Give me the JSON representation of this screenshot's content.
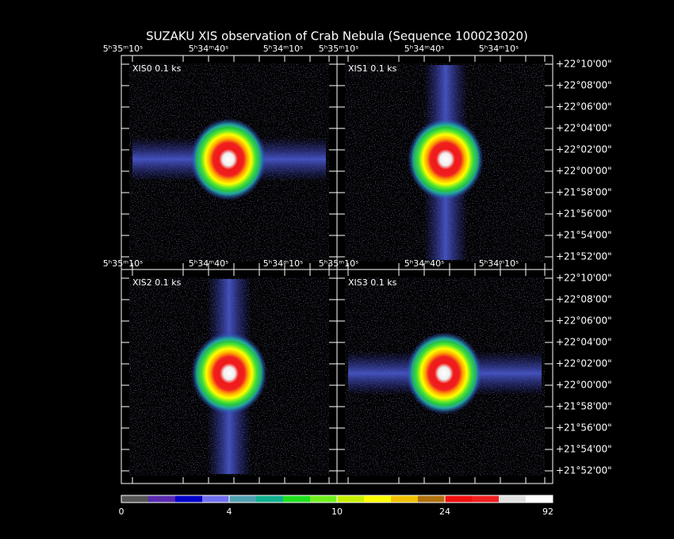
{
  "title": "SUZAKU XIS observation of Crab Nebula  (Sequence 100023020)",
  "panels": [
    {
      "label": "XIS0 0.1 ks",
      "ra_labels": [
        "5ʰ35ᵐ10ˢ",
        "5ʰ34ᵐ40ˢ",
        "5ʰ34ᵐ10ˢ"
      ]
    },
    {
      "label": "XIS1 0.1 ks",
      "ra_labels": [
        "5ʰ35ᵐ10ˢ",
        "5ʰ34ᵐ40ˢ",
        "5ʰ34ᵐ10ˢ"
      ],
      "dec_labels": [
        "+22°10'00\"",
        "+22°08'00\"",
        "+22°06'00\"",
        "+22°04'00\"",
        "+22°02'00\"",
        "+22°00'00\"",
        "+21°58'00\"",
        "+21°56'00\"",
        "+21°54'00\"",
        "+21°52'00\""
      ]
    },
    {
      "label": "XIS2 0.1 ks",
      "ra_labels": [
        "5ʰ35ᵐ10ˢ",
        "5ʰ34ᵐ40ˢ",
        "5ʰ34ᵐ10ˢ"
      ]
    },
    {
      "label": "XIS3 0.1 ks",
      "ra_labels": [
        "5ʰ35ᵐ10ˢ",
        "5ʰ34ᵐ40ˢ",
        "5ʰ34ᵐ10ˢ"
      ],
      "dec_labels": [
        "+22°10'00\"",
        "+22°08'00\"",
        "+22°06'00\"",
        "+22°04'00\"",
        "+22°02'00\"",
        "+22°00'00\"",
        "+21°58'00\"",
        "+21°56'00\"",
        "+21°54'00\"",
        "+21°52'00\""
      ]
    }
  ],
  "colorbar": {
    "ticks": [
      0,
      4,
      10,
      24,
      92
    ]
  }
}
